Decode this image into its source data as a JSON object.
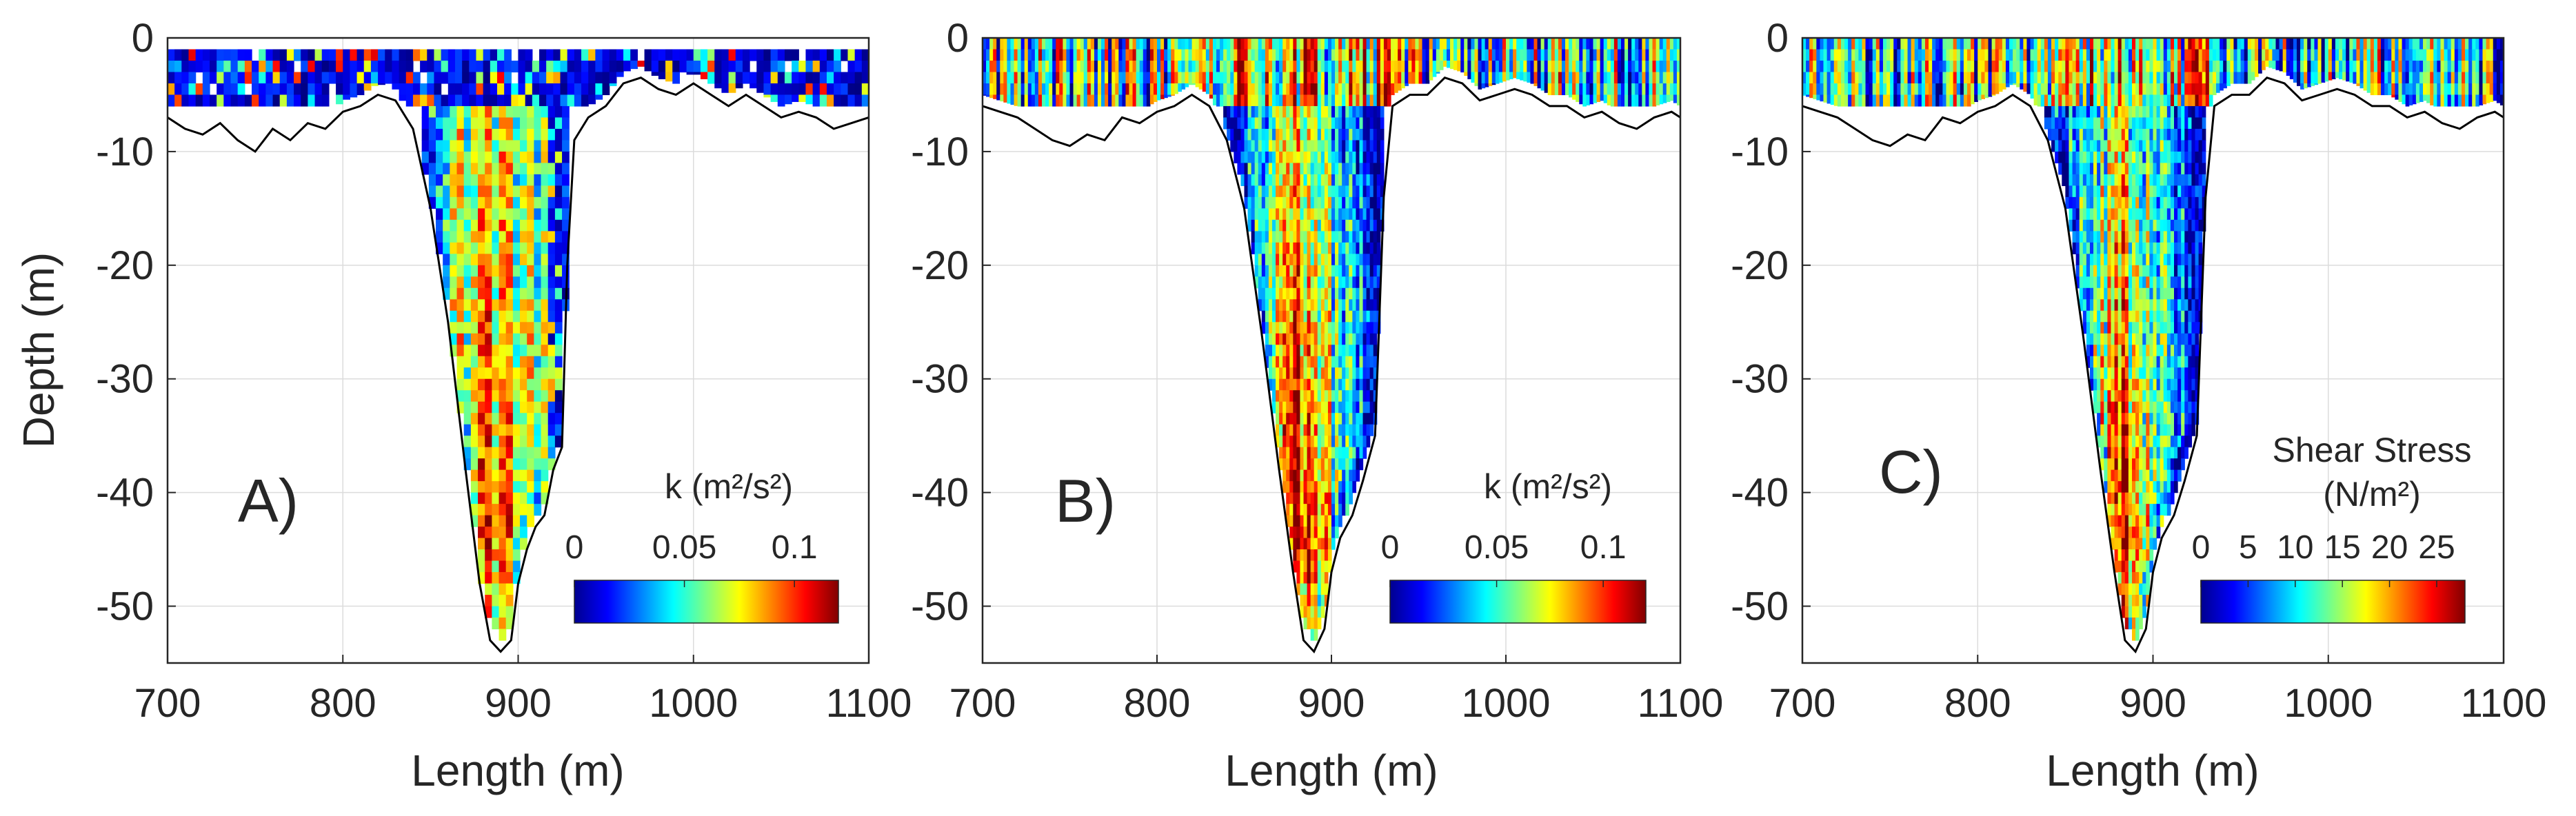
{
  "chart_data": [
    {
      "type": "heatmap",
      "panel_label": "A)",
      "xlabel": "Length (m)",
      "ylabel": "Depth (m)",
      "xlim": [
        700,
        1100
      ],
      "ylim": [
        -55,
        0
      ],
      "xticks": [
        700,
        800,
        900,
        1000,
        1100
      ],
      "yticks": [
        0,
        -10,
        -20,
        -30,
        -40,
        -50
      ],
      "grid": true,
      "colorbar": {
        "title_lines": [
          "k (m²/s²)"
        ],
        "ticks": [
          0,
          0.05,
          0.1
        ],
        "tick_labels": [
          "0",
          "0.05",
          "0.1"
        ],
        "range": [
          0,
          0.12
        ],
        "colormap": "jet",
        "placement": "lower-right"
      },
      "bed": [
        [
          700,
          -7
        ],
        [
          710,
          -8
        ],
        [
          720,
          -8.5
        ],
        [
          730,
          -7.5
        ],
        [
          740,
          -9
        ],
        [
          750,
          -10
        ],
        [
          760,
          -8
        ],
        [
          770,
          -9
        ],
        [
          780,
          -7.5
        ],
        [
          790,
          -8
        ],
        [
          800,
          -6.5
        ],
        [
          810,
          -6
        ],
        [
          820,
          -5
        ],
        [
          830,
          -5.5
        ],
        [
          840,
          -8
        ],
        [
          850,
          -15
        ],
        [
          860,
          -25
        ],
        [
          870,
          -38
        ],
        [
          878,
          -48
        ],
        [
          884,
          -53
        ],
        [
          890,
          -54
        ],
        [
          896,
          -53
        ],
        [
          900,
          -48
        ],
        [
          905,
          -45
        ],
        [
          910,
          -43
        ],
        [
          915,
          -42
        ],
        [
          920,
          -38
        ],
        [
          925,
          -36
        ],
        [
          928,
          -20
        ],
        [
          932,
          -9
        ],
        [
          940,
          -7
        ],
        [
          950,
          -6
        ],
        [
          960,
          -4
        ],
        [
          970,
          -3.5
        ],
        [
          980,
          -4.5
        ],
        [
          990,
          -5
        ],
        [
          1000,
          -4
        ],
        [
          1010,
          -5
        ],
        [
          1020,
          -6
        ],
        [
          1030,
          -5
        ],
        [
          1040,
          -6
        ],
        [
          1050,
          -7
        ],
        [
          1060,
          -6.5
        ],
        [
          1070,
          -7
        ],
        [
          1080,
          -8
        ],
        [
          1090,
          -7.5
        ],
        [
          1100,
          -7
        ]
      ],
      "surface_layer": {
        "x_range": [
          700,
          1100
        ],
        "top_depth": -1,
        "mean": 0.03,
        "style": "noisy"
      },
      "channel": {
        "x_range": [
          845,
          928
        ],
        "peak_x": 885,
        "peak_value": 0.1,
        "edge_value": 0.04,
        "bin_width_m": 4,
        "bin_height_m": 1
      }
    },
    {
      "type": "heatmap",
      "panel_label": "B)",
      "xlabel": "Length (m)",
      "ylabel": "",
      "xlim": [
        700,
        1100
      ],
      "ylim": [
        -55,
        0
      ],
      "xticks": [
        700,
        800,
        900,
        1000,
        1100
      ],
      "yticks": [
        0,
        -10,
        -20,
        -30,
        -40,
        -50
      ],
      "grid": true,
      "colorbar": {
        "title_lines": [
          "k (m²/s²)"
        ],
        "ticks": [
          0,
          0.05,
          0.1
        ],
        "tick_labels": [
          "0",
          "0.05",
          "0.1"
        ],
        "range": [
          0,
          0.12
        ],
        "colormap": "jet",
        "placement": "lower-right"
      },
      "bed": [
        [
          700,
          -6
        ],
        [
          710,
          -6.5
        ],
        [
          720,
          -7
        ],
        [
          730,
          -8
        ],
        [
          740,
          -9
        ],
        [
          750,
          -9.5
        ],
        [
          760,
          -8.5
        ],
        [
          770,
          -9
        ],
        [
          780,
          -7
        ],
        [
          790,
          -7.5
        ],
        [
          800,
          -6.5
        ],
        [
          810,
          -6
        ],
        [
          820,
          -5
        ],
        [
          830,
          -6
        ],
        [
          840,
          -9
        ],
        [
          850,
          -15
        ],
        [
          860,
          -26
        ],
        [
          870,
          -38
        ],
        [
          878,
          -47
        ],
        [
          884,
          -53
        ],
        [
          890,
          -54
        ],
        [
          896,
          -52
        ],
        [
          900,
          -47
        ],
        [
          905,
          -44
        ],
        [
          912,
          -42
        ],
        [
          918,
          -39
        ],
        [
          925,
          -35
        ],
        [
          930,
          -14
        ],
        [
          935,
          -6
        ],
        [
          945,
          -5
        ],
        [
          955,
          -5
        ],
        [
          965,
          -3.5
        ],
        [
          975,
          -4
        ],
        [
          985,
          -5.5
        ],
        [
          995,
          -5
        ],
        [
          1005,
          -4.5
        ],
        [
          1015,
          -5
        ],
        [
          1025,
          -6
        ],
        [
          1035,
          -6
        ],
        [
          1045,
          -7
        ],
        [
          1055,
          -6.5
        ],
        [
          1065,
          -7.5
        ],
        [
          1075,
          -8
        ],
        [
          1085,
          -7
        ],
        [
          1095,
          -6.5
        ],
        [
          1100,
          -7
        ]
      ],
      "surface_layer": {
        "x_range": [
          700,
          1100
        ],
        "top_depth": 0,
        "mean": 0.05,
        "style": "striped"
      },
      "channel": {
        "x_range": [
          838,
          930
        ],
        "peak_x": 882,
        "peak_value": 0.11,
        "edge_value": 0.01,
        "bin_width_m": 2,
        "bin_height_m": 1
      }
    },
    {
      "type": "heatmap",
      "panel_label": "C)",
      "xlabel": "Length (m)",
      "ylabel": "",
      "xlim": [
        700,
        1100
      ],
      "ylim": [
        -55,
        0
      ],
      "xticks": [
        700,
        800,
        900,
        1000,
        1100
      ],
      "yticks": [
        0,
        -10,
        -20,
        -30,
        -40,
        -50
      ],
      "grid": true,
      "colorbar": {
        "title_lines": [
          "Shear Stress",
          "(N/m²)"
        ],
        "ticks": [
          0,
          5,
          10,
          15,
          20,
          25
        ],
        "tick_labels": [
          "0",
          "5",
          "10",
          "15",
          "20",
          "25"
        ],
        "range": [
          0,
          28
        ],
        "colormap": "jet",
        "placement": "lower-right"
      },
      "bed": [
        [
          700,
          -6
        ],
        [
          710,
          -6.5
        ],
        [
          720,
          -7
        ],
        [
          730,
          -8
        ],
        [
          740,
          -9
        ],
        [
          750,
          -9.5
        ],
        [
          760,
          -8.5
        ],
        [
          770,
          -9
        ],
        [
          780,
          -7
        ],
        [
          790,
          -7.5
        ],
        [
          800,
          -6.5
        ],
        [
          810,
          -6
        ],
        [
          820,
          -5
        ],
        [
          830,
          -6
        ],
        [
          840,
          -9
        ],
        [
          850,
          -15
        ],
        [
          860,
          -26
        ],
        [
          870,
          -38
        ],
        [
          878,
          -47
        ],
        [
          884,
          -53
        ],
        [
          890,
          -54
        ],
        [
          896,
          -52
        ],
        [
          900,
          -47
        ],
        [
          905,
          -44
        ],
        [
          912,
          -42
        ],
        [
          918,
          -39
        ],
        [
          925,
          -35
        ],
        [
          930,
          -14
        ],
        [
          935,
          -6
        ],
        [
          945,
          -5
        ],
        [
          955,
          -5
        ],
        [
          965,
          -3.5
        ],
        [
          975,
          -4
        ],
        [
          985,
          -5.5
        ],
        [
          995,
          -5
        ],
        [
          1005,
          -4.5
        ],
        [
          1015,
          -5
        ],
        [
          1025,
          -6
        ],
        [
          1035,
          -6
        ],
        [
          1045,
          -7
        ],
        [
          1055,
          -6.5
        ],
        [
          1065,
          -7.5
        ],
        [
          1075,
          -8
        ],
        [
          1085,
          -7
        ],
        [
          1095,
          -6.5
        ],
        [
          1100,
          -7
        ]
      ],
      "surface_layer": {
        "x_range": [
          700,
          1100
        ],
        "top_depth": 0,
        "mean": 11,
        "style": "striped"
      },
      "channel": {
        "x_range": [
          838,
          930
        ],
        "peak_x": 882,
        "peak_value": 24,
        "edge_value": 3,
        "bin_width_m": 2,
        "bin_height_m": 1
      }
    }
  ],
  "colors": {
    "axis": "#262626",
    "grid": "#dcdcdc",
    "bed_line": "#000000",
    "background": "#ffffff"
  }
}
